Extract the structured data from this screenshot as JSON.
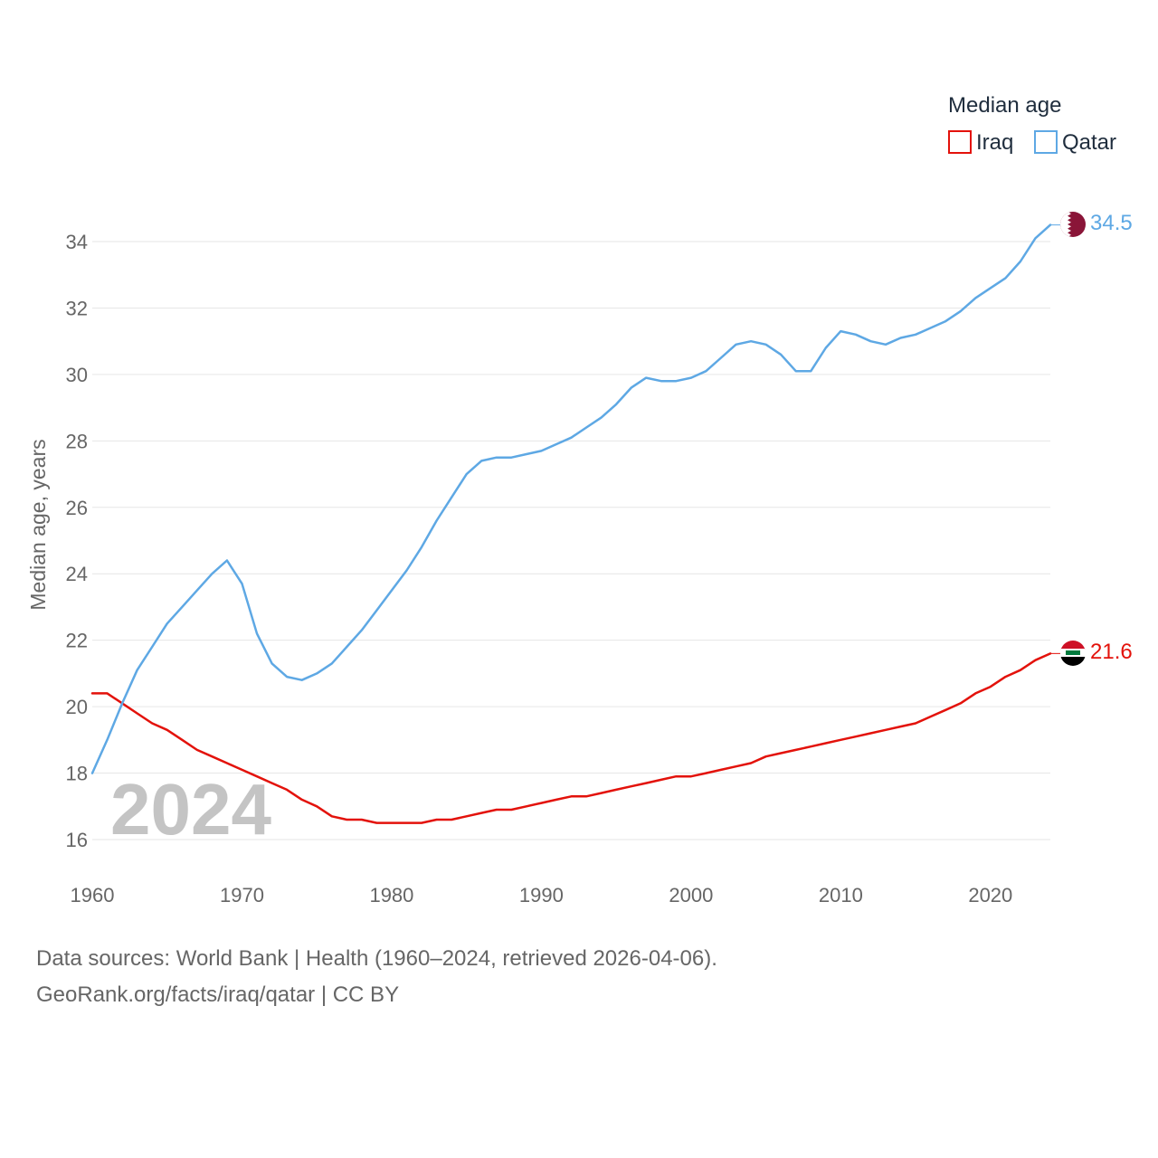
{
  "chart_data": {
    "type": "line",
    "ylabel": "Median age, years",
    "xlim": [
      1960,
      2024
    ],
    "ylim": [
      15,
      35
    ],
    "x_ticks": [
      "1960",
      "1970",
      "1980",
      "1990",
      "2000",
      "2010",
      "2020"
    ],
    "y_ticks": [
      "16",
      "18",
      "20",
      "22",
      "24",
      "26",
      "28",
      "30",
      "32",
      "34"
    ],
    "year_label": "2024",
    "legend": {
      "title": "Median age",
      "items": [
        {
          "name": "Iraq",
          "color": "#e3120b"
        },
        {
          "name": "Qatar",
          "color": "#5ea8e4"
        }
      ]
    },
    "x": [
      1960,
      1961,
      1962,
      1963,
      1964,
      1965,
      1966,
      1967,
      1968,
      1969,
      1970,
      1971,
      1972,
      1973,
      1974,
      1975,
      1976,
      1977,
      1978,
      1979,
      1980,
      1981,
      1982,
      1983,
      1984,
      1985,
      1986,
      1987,
      1988,
      1989,
      1990,
      1991,
      1992,
      1993,
      1994,
      1995,
      1996,
      1997,
      1998,
      1999,
      2000,
      2001,
      2002,
      2003,
      2004,
      2005,
      2006,
      2007,
      2008,
      2009,
      2010,
      2011,
      2012,
      2013,
      2014,
      2015,
      2016,
      2017,
      2018,
      2019,
      2020,
      2021,
      2022,
      2023,
      2024
    ],
    "series": [
      {
        "name": "Iraq",
        "color": "#e3120b",
        "end_label": "21.6",
        "values": [
          20.4,
          20.4,
          20.1,
          19.8,
          19.5,
          19.3,
          19.0,
          18.7,
          18.5,
          18.3,
          18.1,
          17.9,
          17.7,
          17.5,
          17.2,
          17.0,
          16.7,
          16.6,
          16.6,
          16.5,
          16.5,
          16.5,
          16.5,
          16.6,
          16.6,
          16.7,
          16.8,
          16.9,
          16.9,
          17.0,
          17.1,
          17.2,
          17.3,
          17.3,
          17.4,
          17.5,
          17.6,
          17.7,
          17.8,
          17.9,
          17.9,
          18.0,
          18.1,
          18.2,
          18.3,
          18.5,
          18.6,
          18.7,
          18.8,
          18.9,
          19.0,
          19.1,
          19.2,
          19.3,
          19.4,
          19.5,
          19.7,
          19.9,
          20.1,
          20.4,
          20.6,
          20.9,
          21.1,
          21.4,
          21.6
        ]
      },
      {
        "name": "Qatar",
        "color": "#5ea8e4",
        "end_label": "34.5",
        "values": [
          18.0,
          19.0,
          20.1,
          21.1,
          21.8,
          22.5,
          23.0,
          23.5,
          24.0,
          24.4,
          23.7,
          22.2,
          21.3,
          20.9,
          20.8,
          21.0,
          21.3,
          21.8,
          22.3,
          22.9,
          23.5,
          24.1,
          24.8,
          25.6,
          26.3,
          27.0,
          27.4,
          27.5,
          27.5,
          27.6,
          27.7,
          27.9,
          28.1,
          28.4,
          28.7,
          29.1,
          29.6,
          29.9,
          29.8,
          29.8,
          29.9,
          30.1,
          30.5,
          30.9,
          31.0,
          30.9,
          30.6,
          30.1,
          30.1,
          30.8,
          31.3,
          31.2,
          31.0,
          30.9,
          31.1,
          31.2,
          31.4,
          31.6,
          31.9,
          32.3,
          32.6,
          32.9,
          33.4,
          34.1,
          34.5
        ]
      }
    ]
  },
  "footer": {
    "sources": "Data sources: World Bank | Health (1960–2024, retrieved 2026-04-06).",
    "credit": "GeoRank.org/facts/iraq/qatar | CC BY"
  }
}
